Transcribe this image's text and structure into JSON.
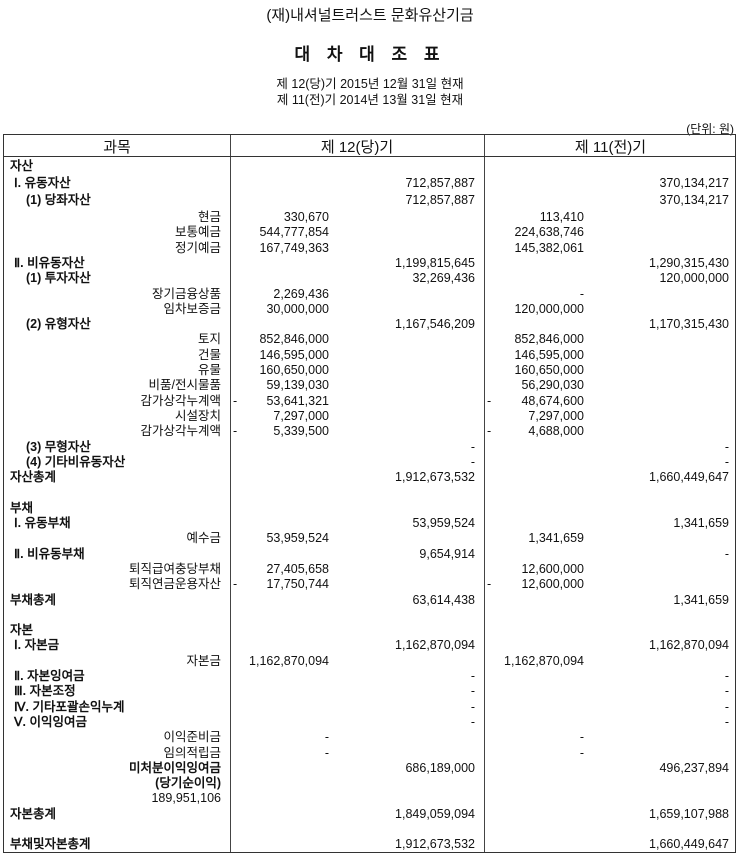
{
  "header": {
    "organization": "(재)내셔널트러스트 문화유산기금",
    "title": "대 차 대 조 표",
    "period_current": "제 12(당)기 2015년 12월 31일 현재",
    "period_previous": "제 11(전)기 2014년 13월 31일 현재",
    "unit": "(단위: 원)"
  },
  "table": {
    "columns": [
      "과목",
      "제 12(당)기",
      "제 11(전)기"
    ],
    "rows": [
      {
        "label": "자산",
        "level": "section"
      },
      {
        "label": "Ⅰ. 유동자산",
        "level": "roman",
        "cur_main": "712,857,887",
        "prev_main": "370,134,217"
      },
      {
        "label": "(1) 당좌자산",
        "level": "sub",
        "cur_main": "712,857,887",
        "prev_main": "370,134,217"
      },
      {
        "label": "현금",
        "level": "item",
        "cur_sub": "330,670",
        "prev_sub": "113,410"
      },
      {
        "label": "보통예금",
        "level": "item",
        "cur_sub": "544,777,854",
        "prev_sub": "224,638,746"
      },
      {
        "label": "정기예금",
        "level": "item",
        "cur_sub": "167,749,363",
        "prev_sub": "145,382,061"
      },
      {
        "label": "Ⅱ. 비유동자산",
        "level": "roman",
        "cur_main": "1,199,815,645",
        "prev_main": "1,290,315,430"
      },
      {
        "label": "(1) 투자자산",
        "level": "sub",
        "cur_main": "32,269,436",
        "prev_main": "120,000,000"
      },
      {
        "label": "장기금융상품",
        "level": "item",
        "cur_sub": "2,269,436",
        "prev_sub": "-"
      },
      {
        "label": "임차보증금",
        "level": "item",
        "cur_sub": "30,000,000",
        "prev_sub": "120,000,000"
      },
      {
        "label": "(2) 유형자산",
        "level": "sub",
        "cur_main": "1,167,546,209",
        "prev_main": "1,170,315,430"
      },
      {
        "label": "토지",
        "level": "item",
        "cur_sub": "852,846,000",
        "prev_sub": "852,846,000"
      },
      {
        "label": "건물",
        "level": "item",
        "cur_sub": "146,595,000",
        "prev_sub": "146,595,000"
      },
      {
        "label": "유물",
        "level": "item",
        "cur_sub": "160,650,000",
        "prev_sub": "160,650,000"
      },
      {
        "label": "비품/전시물품",
        "level": "item",
        "cur_sub": "59,139,030",
        "prev_sub": "56,290,030"
      },
      {
        "label": "감가상각누계액",
        "level": "item",
        "cur_sign": "-",
        "cur_sub": "53,641,321",
        "prev_sign": "-",
        "prev_sub": "48,674,600"
      },
      {
        "label": "시설장치",
        "level": "item",
        "cur_sub": "7,297,000",
        "prev_sub": "7,297,000"
      },
      {
        "label": "감가상각누계액",
        "level": "item",
        "cur_sign": "-",
        "cur_sub": "5,339,500",
        "prev_sign": "-",
        "prev_sub": "4,688,000"
      },
      {
        "label": "(3) 무형자산",
        "level": "sub",
        "cur_main": "-",
        "prev_main": "-"
      },
      {
        "label": "(4) 기타비유동자산",
        "level": "sub",
        "cur_main": "-",
        "prev_main": "-"
      },
      {
        "label": "자산총계",
        "level": "section",
        "cur_main": "1,912,673,532",
        "prev_main": "1,660,449,647"
      },
      {
        "label": "",
        "level": "blank"
      },
      {
        "label": "부채",
        "level": "section"
      },
      {
        "label": "Ⅰ. 유동부채",
        "level": "roman",
        "cur_main": "53,959,524",
        "prev_main": "1,341,659"
      },
      {
        "label": "예수금",
        "level": "item",
        "cur_sub": "53,959,524",
        "prev_sub": "1,341,659"
      },
      {
        "label": "Ⅱ. 비유동부채",
        "level": "roman",
        "cur_main": "9,654,914",
        "prev_main": "-"
      },
      {
        "label": "퇴직급여충당부채",
        "level": "item",
        "cur_sub": "27,405,658",
        "prev_sub": "12,600,000"
      },
      {
        "label": "퇴직연금운용자산",
        "level": "item",
        "cur_sign": "-",
        "cur_sub": "17,750,744",
        "prev_sign": "-",
        "prev_sub": "12,600,000"
      },
      {
        "label": "부채총계",
        "level": "section",
        "cur_main": "63,614,438",
        "prev_main": "1,341,659"
      },
      {
        "label": "",
        "level": "blank"
      },
      {
        "label": "자본",
        "level": "section"
      },
      {
        "label": "Ⅰ. 자본금",
        "level": "roman",
        "cur_main": "1,162,870,094",
        "prev_main": "1,162,870,094"
      },
      {
        "label": "자본금",
        "level": "item",
        "cur_sub": "1,162,870,094",
        "prev_sub": "1,162,870,094"
      },
      {
        "label": "Ⅱ. 자본잉여금",
        "level": "roman",
        "cur_main": "-",
        "prev_main": "-"
      },
      {
        "label": "Ⅲ. 자본조정",
        "level": "roman",
        "cur_main": "-",
        "prev_main": "-"
      },
      {
        "label": "Ⅳ. 기타포괄손익누계",
        "level": "roman",
        "cur_main": "-",
        "prev_main": "-"
      },
      {
        "label": "Ⅴ. 이익잉여금",
        "level": "roman",
        "cur_main": "-",
        "prev_main": "-"
      },
      {
        "label": "이익준비금",
        "level": "item",
        "cur_sub": "-",
        "prev_sub": "-"
      },
      {
        "label": "임의적립금",
        "level": "item",
        "cur_sub": "-",
        "prev_sub": "-"
      },
      {
        "label": "미처분이익잉여금",
        "level": "bolditem",
        "cur_main": "686,189,000",
        "prev_main": "496,237,894"
      },
      {
        "label": "(당기순이익)",
        "level": "bolditem"
      },
      {
        "label": "189,951,106",
        "level": "note"
      },
      {
        "label": "자본총계",
        "level": "section",
        "cur_main": "1,849,059,094",
        "prev_main": "1,659,107,988"
      },
      {
        "label": "",
        "level": "blank"
      },
      {
        "label": "부채및자본총계",
        "level": "section",
        "cur_main": "1,912,673,532",
        "prev_main": "1,660,449,647"
      }
    ]
  }
}
